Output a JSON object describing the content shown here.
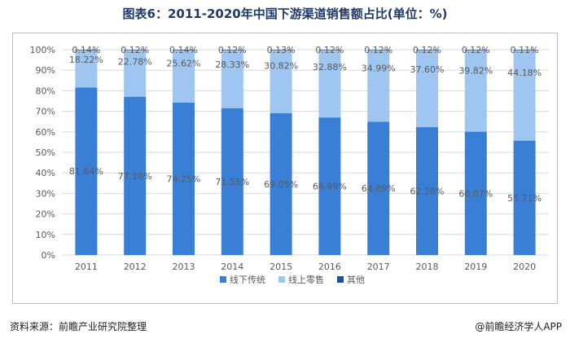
{
  "header": {
    "title": "图表6：2011-2020年中国下游渠道销售额占比(单位：%)"
  },
  "footer": {
    "source": "资料来源：前瞻产业研究院整理",
    "brand": "@前瞻经济学人APP"
  },
  "colors": {
    "offline": "#3a7fd6",
    "online": "#9ec6f0",
    "other": "#1f4f9a",
    "grid": "#d9d9d9",
    "text": "#595959"
  },
  "chart_data": {
    "type": "bar",
    "stacked": true,
    "normalized": true,
    "categories": [
      "2011",
      "2012",
      "2013",
      "2014",
      "2015",
      "2016",
      "2017",
      "2018",
      "2019",
      "2020"
    ],
    "series": [
      {
        "name": "线下传统",
        "values": [
          81.64,
          77.1,
          74.25,
          71.55,
          69.05,
          66.99,
          64.89,
          62.28,
          60.07,
          55.71
        ]
      },
      {
        "name": "线上零售",
        "values": [
          18.22,
          22.78,
          25.62,
          28.33,
          30.82,
          32.88,
          34.99,
          37.6,
          39.82,
          44.18
        ]
      },
      {
        "name": "其他",
        "values": [
          0.14,
          0.12,
          0.14,
          0.12,
          0.13,
          0.12,
          0.12,
          0.12,
          0.12,
          0.11
        ]
      }
    ],
    "yticks": [
      "0%",
      "10%",
      "20%",
      "30%",
      "40%",
      "50%",
      "60%",
      "70%",
      "80%",
      "90%",
      "100%"
    ],
    "ylim": [
      0,
      100
    ],
    "grid": true,
    "legend_position": "bottom"
  }
}
